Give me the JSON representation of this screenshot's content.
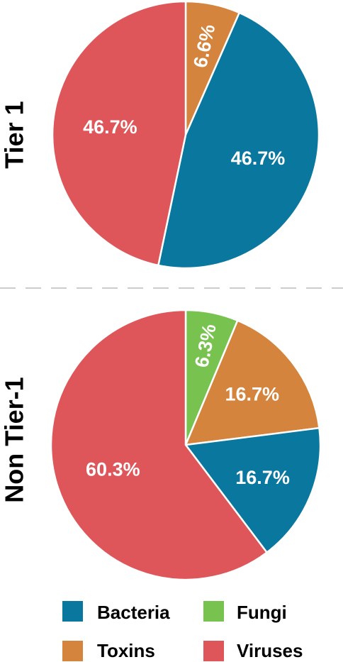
{
  "chart_data": [
    {
      "type": "pie",
      "title": "Tier 1",
      "slices": [
        {
          "category": "Toxins",
          "value": 6.6,
          "label": "6.6%"
        },
        {
          "category": "Bacteria",
          "value": 46.7,
          "label": "46.7%"
        },
        {
          "category": "Viruses",
          "value": 46.7,
          "label": "46.7%"
        }
      ]
    },
    {
      "type": "pie",
      "title": "Non Tier-1",
      "slices": [
        {
          "category": "Fungi",
          "value": 6.3,
          "label": "6.3%"
        },
        {
          "category": "Toxins",
          "value": 16.7,
          "label": "16.7%"
        },
        {
          "category": "Bacteria",
          "value": 16.7,
          "label": "16.7%"
        },
        {
          "category": "Viruses",
          "value": 60.3,
          "label": "60.3%"
        }
      ]
    }
  ],
  "legend": {
    "position": "bottom",
    "items": [
      {
        "label": "Bacteria",
        "color": "#0a789e"
      },
      {
        "label": "Fungi",
        "color": "#78c350"
      },
      {
        "label": "Toxins",
        "color": "#d4843c"
      },
      {
        "label": "Viruses",
        "color": "#df565a"
      }
    ]
  }
}
